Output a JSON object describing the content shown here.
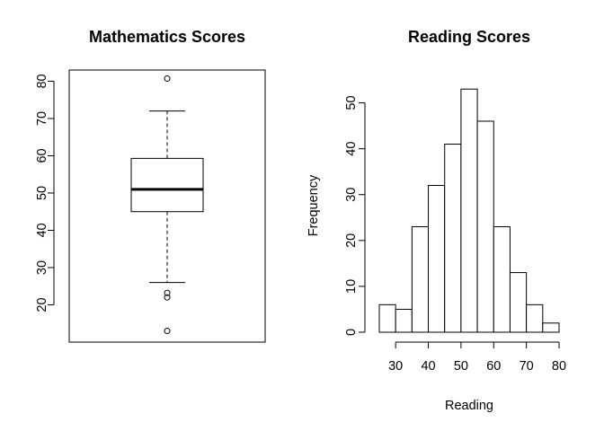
{
  "chart_data": [
    {
      "type": "box",
      "title": "Mathematics Scores",
      "xlabel": "",
      "ylabel": "",
      "ylim": [
        10,
        83
      ],
      "yticks": [
        20,
        30,
        40,
        50,
        60,
        70,
        80
      ],
      "stats": {
        "lower_whisker": 26,
        "q1": 45,
        "median": 51,
        "q3": 59.3,
        "upper_whisker": 72
      },
      "outliers": [
        80.7,
        23.2,
        22,
        13
      ]
    },
    {
      "type": "bar",
      "subtype": "histogram",
      "title": "Reading Scores",
      "xlabel": "Reading",
      "ylabel": "Frequency",
      "bin_edges": [
        25,
        30,
        35,
        40,
        45,
        50,
        55,
        60,
        65,
        70,
        75,
        80
      ],
      "values": [
        6,
        5,
        23,
        32,
        41,
        53,
        46,
        23,
        13,
        6,
        2
      ],
      "xticks": [
        30,
        40,
        50,
        60,
        70,
        80
      ],
      "yticks": [
        0,
        10,
        20,
        30,
        40,
        50
      ],
      "ylim": [
        0,
        55
      ]
    }
  ]
}
